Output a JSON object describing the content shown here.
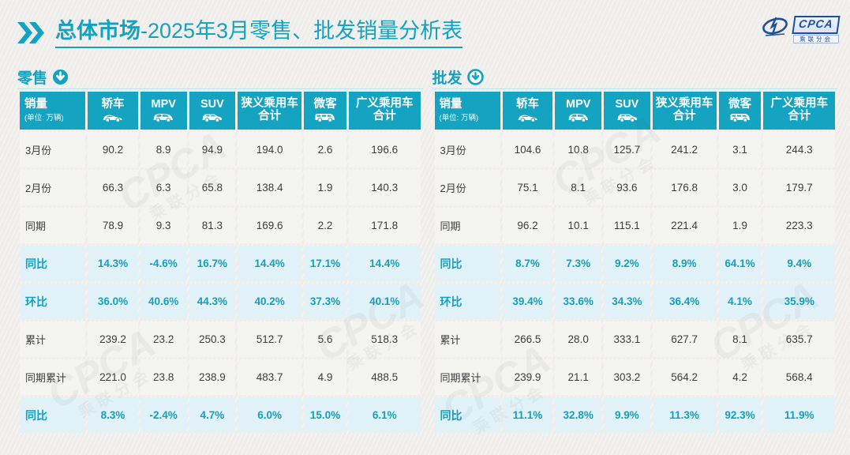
{
  "page": {
    "title_prefix": "总体市场",
    "title_rest": "-2025年3月零售、批发销量分析表",
    "logo": {
      "text": "CPCA",
      "subtext": "乘联分会"
    }
  },
  "colors": {
    "accent_teal": "#14a3c0",
    "percent_text": "#12a0c2",
    "percent_row_bg": "#e2f2f9",
    "data_row_bg": "#f4f4f1",
    "logo_blue": "#1e4f9e"
  },
  "tables": [
    {
      "section_label": "零售",
      "columns": [
        {
          "label": "销量",
          "unit": "(单位: 万辆)"
        },
        {
          "label": "轿车",
          "icon": "sedan-icon"
        },
        {
          "label": "MPV",
          "icon": "mpv-icon"
        },
        {
          "label": "SUV",
          "icon": "suv-icon"
        },
        {
          "label": "狭义乘用车合计"
        },
        {
          "label": "微客",
          "icon": "microvan-icon"
        },
        {
          "label": "广义乘用车合计"
        }
      ],
      "rows": [
        {
          "label": "3月份",
          "type": "data",
          "values": [
            "90.2",
            "8.9",
            "94.9",
            "194.0",
            "2.6",
            "196.6"
          ]
        },
        {
          "label": "2月份",
          "type": "data",
          "values": [
            "66.3",
            "6.3",
            "65.8",
            "138.4",
            "1.9",
            "140.3"
          ]
        },
        {
          "label": "同期",
          "type": "data",
          "values": [
            "78.9",
            "9.3",
            "81.3",
            "169.6",
            "2.2",
            "171.8"
          ]
        },
        {
          "label": "同比",
          "type": "percent",
          "values": [
            "14.3%",
            "-4.6%",
            "16.7%",
            "14.4%",
            "17.1%",
            "14.4%"
          ]
        },
        {
          "label": "环比",
          "type": "percent",
          "values": [
            "36.0%",
            "40.6%",
            "44.3%",
            "40.2%",
            "37.3%",
            "40.1%"
          ]
        },
        {
          "label": "累计",
          "type": "data",
          "values": [
            "239.2",
            "23.2",
            "250.3",
            "512.7",
            "5.6",
            "518.3"
          ]
        },
        {
          "label": "同期累计",
          "type": "data",
          "values": [
            "221.0",
            "23.8",
            "238.9",
            "483.7",
            "4.9",
            "488.5"
          ]
        },
        {
          "label": "同比",
          "type": "percent",
          "values": [
            "8.3%",
            "-2.4%",
            "4.7%",
            "6.0%",
            "15.0%",
            "6.1%"
          ]
        }
      ]
    },
    {
      "section_label": "批发",
      "columns": [
        {
          "label": "销量",
          "unit": "(单位: 万辆)"
        },
        {
          "label": "轿车",
          "icon": "sedan-icon"
        },
        {
          "label": "MPV",
          "icon": "mpv-icon"
        },
        {
          "label": "SUV",
          "icon": "suv-icon"
        },
        {
          "label": "狭义乘用车合计"
        },
        {
          "label": "微客",
          "icon": "microvan-icon"
        },
        {
          "label": "广义乘用车合计"
        }
      ],
      "rows": [
        {
          "label": "3月份",
          "type": "data",
          "values": [
            "104.6",
            "10.8",
            "125.7",
            "241.2",
            "3.1",
            "244.3"
          ]
        },
        {
          "label": "2月份",
          "type": "data",
          "values": [
            "75.1",
            "8.1",
            "93.6",
            "176.8",
            "3.0",
            "179.7"
          ]
        },
        {
          "label": "同期",
          "type": "data",
          "values": [
            "96.2",
            "10.1",
            "115.1",
            "221.4",
            "1.9",
            "223.3"
          ]
        },
        {
          "label": "同比",
          "type": "percent",
          "values": [
            "8.7%",
            "7.3%",
            "9.2%",
            "8.9%",
            "64.1%",
            "9.4%"
          ]
        },
        {
          "label": "环比",
          "type": "percent",
          "values": [
            "39.4%",
            "33.6%",
            "34.3%",
            "36.4%",
            "4.1%",
            "35.9%"
          ]
        },
        {
          "label": "累计",
          "type": "data",
          "values": [
            "266.5",
            "28.0",
            "333.1",
            "627.7",
            "8.1",
            "635.7"
          ]
        },
        {
          "label": "同期累计",
          "type": "data",
          "values": [
            "239.9",
            "21.1",
            "303.2",
            "564.2",
            "4.2",
            "568.4"
          ]
        },
        {
          "label": "同比",
          "type": "percent",
          "values": [
            "11.1%",
            "32.8%",
            "9.9%",
            "11.3%",
            "92.3%",
            "11.9%"
          ]
        }
      ]
    }
  ]
}
